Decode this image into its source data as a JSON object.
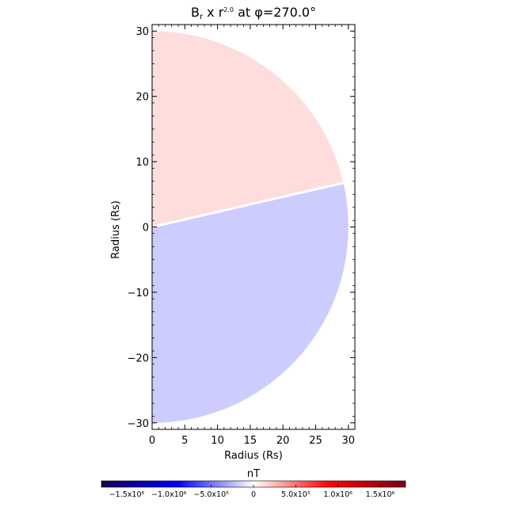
{
  "chart_data": {
    "type": "heatmap",
    "title": {
      "base": "B",
      "sub": "r",
      "middle": " x r",
      "sup": "2.0",
      "tail": " at φ=270.0°"
    },
    "xlabel": "Radius (Rs)",
    "ylabel": "Radius (Rs)",
    "xlim": [
      0,
      31
    ],
    "ylim": [
      -31,
      31
    ],
    "x_ticks": [
      "0",
      "5",
      "10",
      "15",
      "20",
      "25",
      "30"
    ],
    "y_ticks": [
      "−30",
      "−20",
      "−10",
      "0",
      "10",
      "20",
      "30"
    ],
    "x_tick_values": [
      0,
      5,
      10,
      15,
      20,
      25,
      30
    ],
    "y_tick_values": [
      -30,
      -20,
      -10,
      0,
      10,
      20,
      30
    ],
    "domain": {
      "r_max": 30,
      "theta_min_deg": -90,
      "theta_max_deg": 90,
      "current_sheet_angle_deg": 13
    },
    "field_regions": [
      {
        "name": "positive-sector",
        "theta_from_deg": 13,
        "theta_to_deg": 90,
        "value_1e6": 0.12
      },
      {
        "name": "negative-sector",
        "theta_from_deg": -90,
        "theta_to_deg": 13,
        "value_1e6": -0.18
      }
    ],
    "colorbar": {
      "label": "nT",
      "range": [
        -1.8,
        1.8
      ],
      "ticks": [
        {
          "value": -1.5,
          "label": "−1.5x10⁶"
        },
        {
          "value": -1.0,
          "label": "−1.0x10⁶"
        },
        {
          "value": -0.5,
          "label": "−5.0x10⁵"
        },
        {
          "value": 0,
          "label": "0"
        },
        {
          "value": 0.5,
          "label": "5.0x10⁵"
        },
        {
          "value": 1.0,
          "label": "1.0x10⁶"
        },
        {
          "value": 1.5,
          "label": "1.5x10⁶"
        }
      ],
      "colors": [
        "#1a0050",
        "#0000ff",
        "#ffffff",
        "#ff0000",
        "#7a0020"
      ]
    }
  }
}
